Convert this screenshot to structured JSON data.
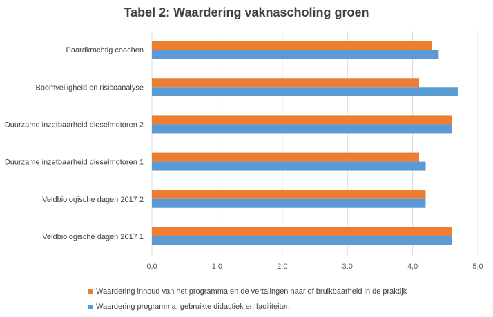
{
  "chart_data": {
    "type": "bar",
    "orientation": "horizontal",
    "title": "Tabel 2: Waardering vaknascholing groen",
    "xlabel": "",
    "ylabel": "",
    "categories": [
      "Paardkrachtig coachen",
      "Boomveiligheid en risicoanalyse",
      "Duurzame inzetbaarheid dieselmotoren 2",
      "Duurzame inzetbaarheid dieselmotoren 1",
      "Veldbiologische dagen 2017 2",
      "Veldbiologische dagen 2017 1"
    ],
    "series": [
      {
        "name": "Waardering inhoud van het programma en de vertalingen naar of bruikbaarheid in de praktijk",
        "color": "#ED7D31",
        "values": [
          4.3,
          4.1,
          4.6,
          4.1,
          4.2,
          4.6
        ]
      },
      {
        "name": "Waardering programma, gebruikte didactiek en faciliteiten",
        "color": "#5B9BD5",
        "values": [
          4.4,
          4.7,
          4.6,
          4.2,
          4.2,
          4.6
        ]
      }
    ],
    "xlim": [
      0,
      5
    ],
    "xticks": [
      "0,0",
      "1,0",
      "2,0",
      "3,0",
      "4,0",
      "5,0"
    ],
    "grid": true,
    "legend_position": "bottom"
  }
}
